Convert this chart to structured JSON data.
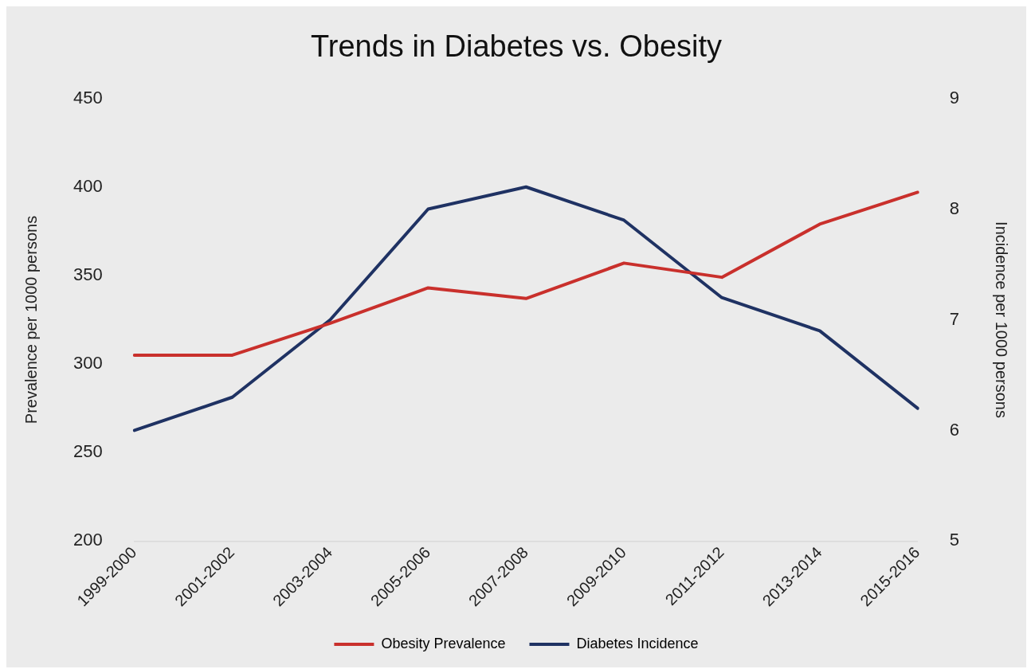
{
  "chart_data": {
    "type": "line",
    "title": "Trends in Diabetes vs. Obesity",
    "ylabel": "Prevalence per 1000 persons",
    "y2label": "Incidence per 1000 persons",
    "categories": [
      "1999-2000",
      "2001-2002",
      "2003-2004",
      "2005-2006",
      "2007-2008",
      "2009-2010",
      "2011-2012",
      "2013-2014",
      "2015-2016"
    ],
    "series": [
      {
        "name": "Obesity Prevalence",
        "color": "#c9302c",
        "values": [
          305,
          305,
          323,
          343,
          337,
          357,
          349,
          379,
          397
        ]
      },
      {
        "name": "Diabetes Incidence",
        "color": "#1f3263",
        "axis": "y2",
        "values": [
          6.0,
          6.3,
          7.0,
          8.0,
          8.2,
          7.9,
          7.2,
          6.9,
          6.2
        ]
      }
    ],
    "ylim": [
      200,
      450
    ],
    "yticks": [
      200,
      250,
      300,
      350,
      400,
      450
    ],
    "y2lim": [
      5,
      9
    ],
    "y2ticks": [
      5,
      6,
      7,
      8,
      9
    ],
    "grid": false,
    "legend": "bottom",
    "marker": "none",
    "line_style": "solid"
  }
}
